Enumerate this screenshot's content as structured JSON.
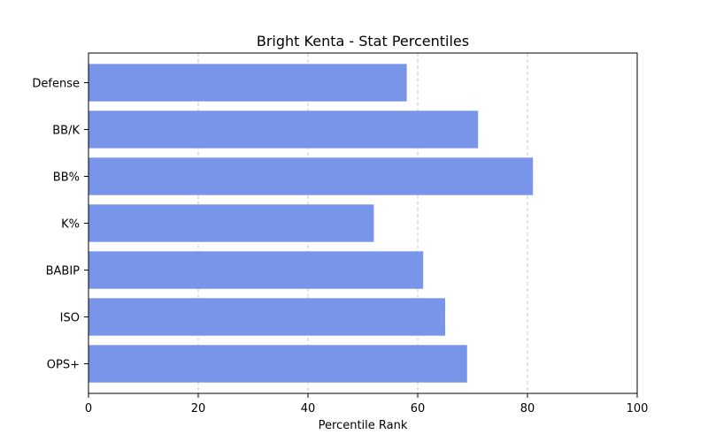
{
  "chart_data": {
    "type": "bar",
    "orientation": "horizontal",
    "title": "Bright Kenta - Stat Percentiles",
    "xlabel": "Percentile Rank",
    "ylabel": "",
    "categories": [
      "OPS+",
      "ISO",
      "BABIP",
      "K%",
      "BB%",
      "BB/K",
      "Defense"
    ],
    "values": [
      69,
      65,
      61,
      52,
      81,
      71,
      58
    ],
    "xlim": [
      0,
      100
    ],
    "xticks": [
      0,
      20,
      40,
      60,
      80,
      100
    ],
    "grid": "x-dashed",
    "bar_color": "#7995e9"
  }
}
